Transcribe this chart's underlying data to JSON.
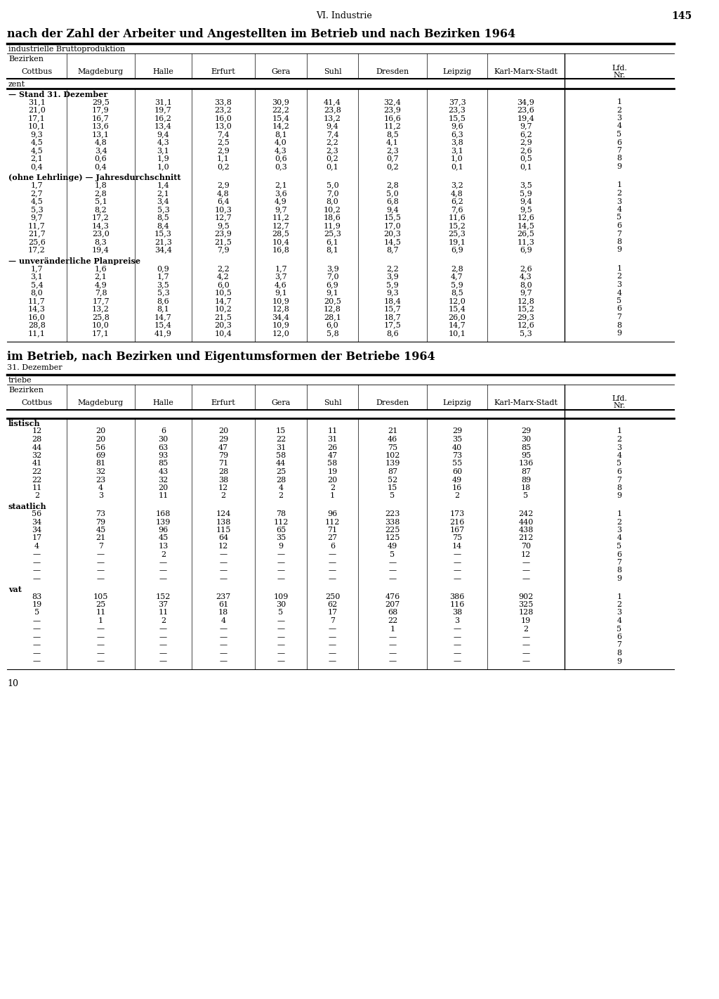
{
  "page_header": "VI. Industrie",
  "page_number": "145",
  "title1": "nach der Zahl der Arbeiter und Angestellten im Betrieb und nach Bezirken 1964",
  "title2": "im Betrieb, nach Bezirken und Eigentumsformen der Betriebe 1964",
  "subtitle2": "31. Dezember",
  "col_label1": "industrielle Bruttoproduktion",
  "col_label2": "triebe",
  "label_bezirken": "Bezirken",
  "unit_label": "zent",
  "columns": [
    "Cottbus",
    "Magdeburg",
    "Halle",
    "Erfurt",
    "Gera",
    "Suhl",
    "Dresden",
    "Leipzig",
    "Karl-Marx-Stadt"
  ],
  "section1_header": "— Stand 31. Dezember",
  "section2_header": "(ohne Lehrlinge) — Jahresdurchschnitt",
  "section3_header": "— unveränderliche Planpreise",
  "section1_data": [
    [
      "31,1",
      "29,5",
      "31,1",
      "33,8",
      "30,9",
      "41,4",
      "32,4",
      "37,3",
      "34,9",
      "1"
    ],
    [
      "21,0",
      "17,9",
      "19,7",
      "23,2",
      "22,2",
      "23,8",
      "23,9",
      "23,3",
      "23,6",
      "2"
    ],
    [
      "17,1",
      "16,7",
      "16,2",
      "16,0",
      "15,4",
      "13,2",
      "16,6",
      "15,5",
      "19,4",
      "3"
    ],
    [
      "10,1",
      "13,6",
      "13,4",
      "13,0",
      "14,2",
      "9,4",
      "11,2",
      "9,6",
      "9,7",
      "4"
    ],
    [
      "9,3",
      "13,1",
      "9,4",
      "7,4",
      "8,1",
      "7,4",
      "8,5",
      "6,3",
      "6,2",
      "5"
    ],
    [
      "4,5",
      "4,8",
      "4,3",
      "2,5",
      "4,0",
      "2,2",
      "4,1",
      "3,8",
      "2,9",
      "6"
    ],
    [
      "4,5",
      "3,4",
      "3,1",
      "2,9",
      "4,3",
      "2,3",
      "2,3",
      "3,1",
      "2,6",
      "7"
    ],
    [
      "2,1",
      "0,6",
      "1,9",
      "1,1",
      "0,6",
      "0,2",
      "0,7",
      "1,0",
      "0,5",
      "8"
    ],
    [
      "0,4",
      "0,4",
      "1,0",
      "0,2",
      "0,3",
      "0,1",
      "0,2",
      "0,1",
      "0,1",
      "9"
    ]
  ],
  "section2_data": [
    [
      "1,7",
      "1,8",
      "1,4",
      "2,9",
      "2,1",
      "5,0",
      "2,8",
      "3,2",
      "3,5",
      "1"
    ],
    [
      "2,7",
      "2,8",
      "2,1",
      "4,8",
      "3,6",
      "7,0",
      "5,0",
      "4,8",
      "5,9",
      "2"
    ],
    [
      "4,5",
      "5,1",
      "3,4",
      "6,4",
      "4,9",
      "8,0",
      "6,8",
      "6,2",
      "9,4",
      "3"
    ],
    [
      "5,3",
      "8,2",
      "5,3",
      "10,3",
      "9,7",
      "10,2",
      "9,4",
      "7,6",
      "9,5",
      "4"
    ],
    [
      "9,7",
      "17,2",
      "8,5",
      "12,7",
      "11,2",
      "18,6",
      "15,5",
      "11,6",
      "12,6",
      "5"
    ],
    [
      "11,7",
      "14,3",
      "8,4",
      "9,5",
      "12,7",
      "11,9",
      "17,0",
      "15,2",
      "14,5",
      "6"
    ],
    [
      "21,7",
      "23,0",
      "15,3",
      "23,9",
      "28,5",
      "25,3",
      "20,3",
      "25,3",
      "26,5",
      "7"
    ],
    [
      "25,6",
      "8,3",
      "21,3",
      "21,5",
      "10,4",
      "6,1",
      "14,5",
      "19,1",
      "11,3",
      "8"
    ],
    [
      "17,2",
      "19,4",
      "34,4",
      "7,9",
      "16,8",
      "8,1",
      "8,7",
      "6,9",
      "6,9",
      "9"
    ]
  ],
  "section3_data": [
    [
      "1,7",
      "1,6",
      "0,9",
      "2,2",
      "1,7",
      "3,9",
      "2,2",
      "2,8",
      "2,6",
      "1"
    ],
    [
      "3,1",
      "2,1",
      "1,7",
      "4,2",
      "3,7",
      "7,0",
      "3,9",
      "4,7",
      "4,3",
      "2"
    ],
    [
      "5,4",
      "4,9",
      "3,5",
      "6,0",
      "4,6",
      "6,9",
      "5,9",
      "5,9",
      "8,0",
      "3"
    ],
    [
      "8,0",
      "7,8",
      "5,3",
      "10,5",
      "9,1",
      "9,1",
      "9,3",
      "8,5",
      "9,7",
      "4"
    ],
    [
      "11,7",
      "17,7",
      "8,6",
      "14,7",
      "10,9",
      "20,5",
      "18,4",
      "12,0",
      "12,8",
      "5"
    ],
    [
      "14,3",
      "13,2",
      "8,1",
      "10,2",
      "12,8",
      "12,8",
      "15,7",
      "15,4",
      "15,2",
      "6"
    ],
    [
      "16,0",
      "25,8",
      "14,7",
      "21,5",
      "34,4",
      "28,1",
      "18,7",
      "26,0",
      "29,3",
      "7"
    ],
    [
      "28,8",
      "10,0",
      "15,4",
      "20,3",
      "10,9",
      "6,0",
      "17,5",
      "14,7",
      "12,6",
      "8"
    ],
    [
      "11,1",
      "17,1",
      "41,9",
      "10,4",
      "12,0",
      "5,8",
      "8,6",
      "10,1",
      "5,3",
      "9"
    ]
  ],
  "t2_section1_header": "listisch",
  "t2_section2_header": "staatlich",
  "t2_section3_header": "vat",
  "t2_data_s1": [
    [
      "12",
      "20",
      "6",
      "20",
      "15",
      "11",
      "21",
      "29",
      "29",
      "1"
    ],
    [
      "28",
      "20",
      "30",
      "29",
      "22",
      "31",
      "46",
      "35",
      "30",
      "2"
    ],
    [
      "44",
      "56",
      "63",
      "47",
      "31",
      "26",
      "75",
      "40",
      "85",
      "3"
    ],
    [
      "32",
      "69",
      "93",
      "79",
      "58",
      "47",
      "102",
      "73",
      "95",
      "4"
    ],
    [
      "41",
      "81",
      "85",
      "71",
      "44",
      "58",
      "139",
      "55",
      "136",
      "5"
    ],
    [
      "22",
      "32",
      "43",
      "28",
      "25",
      "19",
      "87",
      "60",
      "87",
      "6"
    ],
    [
      "22",
      "23",
      "32",
      "38",
      "28",
      "20",
      "52",
      "49",
      "89",
      "7"
    ],
    [
      "11",
      "4",
      "20",
      "12",
      "4",
      "2",
      "15",
      "16",
      "18",
      "8"
    ],
    [
      "2",
      "3",
      "11",
      "2",
      "2",
      "1",
      "5",
      "2",
      "5",
      "9"
    ]
  ],
  "t2_data_s2": [
    [
      "56",
      "73",
      "168",
      "124",
      "78",
      "96",
      "223",
      "173",
      "242",
      "1"
    ],
    [
      "34",
      "79",
      "139",
      "138",
      "112",
      "112",
      "338",
      "216",
      "440",
      "2"
    ],
    [
      "34",
      "45",
      "96",
      "115",
      "65",
      "71",
      "225",
      "167",
      "438",
      "3"
    ],
    [
      "17",
      "21",
      "45",
      "64",
      "35",
      "27",
      "125",
      "75",
      "212",
      "4"
    ],
    [
      "4",
      "7",
      "13",
      "12",
      "9",
      "6",
      "49",
      "14",
      "70",
      "5"
    ],
    [
      "—",
      "—",
      "2",
      "—",
      "—",
      "—",
      "5",
      "—",
      "12",
      "6"
    ],
    [
      "—",
      "—",
      "—",
      "—",
      "—",
      "—",
      "—",
      "—",
      "—",
      "7"
    ],
    [
      "—",
      "—",
      "—",
      "—",
      "—",
      "—",
      "—",
      "—",
      "—",
      "8"
    ],
    [
      "—",
      "—",
      "—",
      "—",
      "—",
      "—",
      "—",
      "—",
      "—",
      "9"
    ]
  ],
  "t2_data_s3": [
    [
      "83",
      "105",
      "152",
      "237",
      "109",
      "250",
      "476",
      "386",
      "902",
      "1"
    ],
    [
      "19",
      "25",
      "37",
      "61",
      "30",
      "62",
      "207",
      "116",
      "325",
      "2"
    ],
    [
      "5",
      "11",
      "11",
      "18",
      "5",
      "17",
      "68",
      "38",
      "128",
      "3"
    ],
    [
      "—",
      "1",
      "2",
      "4",
      "—",
      "7",
      "22",
      "3",
      "19",
      "4"
    ],
    [
      "—",
      "—",
      "—",
      "—",
      "—",
      "—",
      "1",
      "—",
      "2",
      "5"
    ],
    [
      "—",
      "—",
      "—",
      "—",
      "—",
      "—",
      "—",
      "—",
      "—",
      "6"
    ],
    [
      "—",
      "—",
      "—",
      "—",
      "—",
      "—",
      "—",
      "—",
      "—",
      "7"
    ],
    [
      "—",
      "—",
      "—",
      "—",
      "—",
      "—",
      "—",
      "—",
      "—",
      "8"
    ],
    [
      "—",
      "—",
      "—",
      "—",
      "—",
      "—",
      "—",
      "—",
      "—",
      "9"
    ]
  ],
  "footer_number": "10"
}
